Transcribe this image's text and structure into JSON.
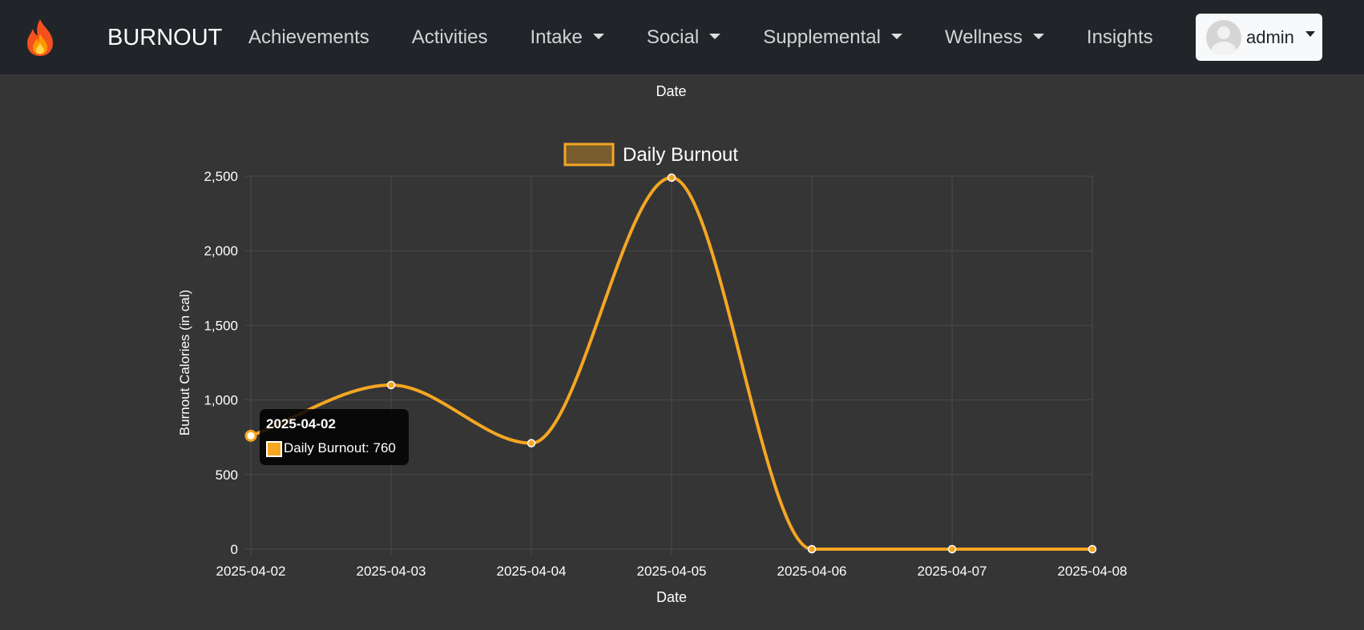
{
  "navbar": {
    "brand_icon": "flame-icon",
    "brand_name": "BURNOUT",
    "items": [
      {
        "label": "Achievements",
        "dropdown": false
      },
      {
        "label": "Activities",
        "dropdown": false
      },
      {
        "label": "Intake",
        "dropdown": true
      },
      {
        "label": "Social",
        "dropdown": true
      },
      {
        "label": "Supplemental",
        "dropdown": true
      },
      {
        "label": "Wellness",
        "dropdown": true
      },
      {
        "label": "Insights",
        "dropdown": false
      }
    ],
    "user": {
      "name": "admin",
      "icon": "avatar-icon"
    }
  },
  "top_label": "Date",
  "colors": {
    "accent": "#f5a623",
    "navbar_bg": "#212529",
    "page_bg": "#353535",
    "grid": "#4a4a4a"
  },
  "chart_data": {
    "type": "line",
    "title": "",
    "xlabel": "Date",
    "ylabel": "Burnout Calories (in cal)",
    "legend": {
      "position": "top",
      "entries": [
        "Daily Burnout"
      ]
    },
    "grid": true,
    "x": [
      "2025-04-02",
      "2025-04-03",
      "2025-04-04",
      "2025-04-05",
      "2025-04-06",
      "2025-04-07",
      "2025-04-08"
    ],
    "series": [
      {
        "name": "Daily Burnout",
        "values": [
          760,
          1100,
          710,
          2490,
          0,
          0,
          0
        ]
      }
    ],
    "ylim": [
      0,
      2500
    ],
    "yticks": [
      0,
      500,
      1000,
      1500,
      2000,
      2500
    ],
    "ytick_labels": [
      "0",
      "500",
      "1,000",
      "1,500",
      "2,000",
      "2,500"
    ]
  },
  "tooltip": {
    "title": "2025-04-02",
    "label": "Daily Burnout: 760"
  }
}
